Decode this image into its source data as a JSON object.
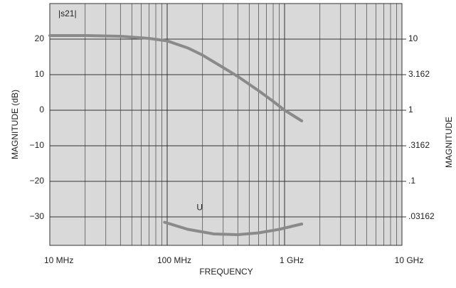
{
  "chart_data": {
    "type": "line",
    "xlabel": "FREQUENCY",
    "ylabel": "MAGNITUDE (dB)",
    "y2label": "MAGNITUDE",
    "xscale": "log",
    "xlim": [
      10,
      10000
    ],
    "xticks": [
      {
        "value": 10,
        "label": "10 MHz"
      },
      {
        "value": 100,
        "label": "100 MHz"
      },
      {
        "value": 1000,
        "label": "1 GHz"
      },
      {
        "value": 10000,
        "label": "10 GHz"
      }
    ],
    "ylim": [
      -38,
      30
    ],
    "yticks": [
      {
        "value": -30,
        "label": "−30"
      },
      {
        "value": -20,
        "label": "−20"
      },
      {
        "value": -10,
        "label": "−10"
      },
      0,
      10,
      20
    ],
    "y2scale": "log",
    "y2lim": [
      0.01259,
      31.62
    ],
    "y2ticks": [
      {
        "value": 0.03162,
        "label": ".03162"
      },
      {
        "value": 0.1,
        "label": ".1"
      },
      {
        "value": 0.3162,
        "label": ".3162"
      },
      1,
      3.162,
      10
    ],
    "grid": true,
    "series": [
      {
        "name": "|s21|",
        "color": "#8a8a8a",
        "x": [
          10,
          20,
          40,
          70,
          100,
          150,
          200,
          300,
          400,
          600,
          800,
          1000,
          1400
        ],
        "values": [
          21,
          21,
          20.8,
          20.2,
          19.5,
          17.5,
          15.5,
          12,
          9.5,
          5.5,
          2.5,
          0,
          -3
        ]
      },
      {
        "name": "U",
        "color": "#8a8a8a",
        "x": [
          95,
          150,
          250,
          400,
          600,
          900,
          1400
        ],
        "values": [
          -31.5,
          -33.5,
          -34.8,
          -35,
          -34.5,
          -33.5,
          -32
        ]
      }
    ]
  }
}
